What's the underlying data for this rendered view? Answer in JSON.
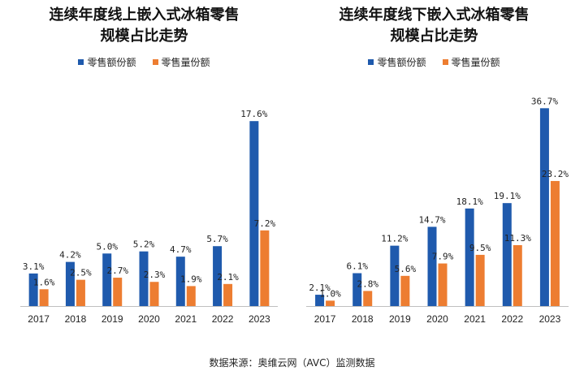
{
  "chart_data": [
    {
      "type": "bar",
      "title_lines": [
        "连续年度线上嵌入式冰箱零售",
        "规模占比走势"
      ],
      "categories": [
        "2017",
        "2018",
        "2019",
        "2020",
        "2021",
        "2022",
        "2023"
      ],
      "series": [
        {
          "name": "零售额份额",
          "values": [
            3.1,
            4.2,
            5.0,
            5.2,
            4.7,
            5.7,
            17.6
          ],
          "labels": [
            "3.1%",
            "4.2%",
            "5.0%",
            "5.2%",
            "4.7%",
            "5.7%",
            "17.6%"
          ],
          "color": "#1f5aad"
        },
        {
          "name": "零售量份额",
          "values": [
            1.6,
            2.5,
            2.7,
            2.3,
            1.9,
            2.1,
            7.2
          ],
          "labels": [
            "1.6%",
            "2.5%",
            "2.7%",
            "2.3%",
            "1.9%",
            "2.1%",
            "7.2%"
          ],
          "color": "#ed7d31"
        }
      ],
      "ylim": [
        0,
        18
      ]
    },
    {
      "type": "bar",
      "title_lines": [
        "连续年度线下嵌入式冰箱零售",
        "规模占比走势"
      ],
      "categories": [
        "2017",
        "2018",
        "2019",
        "2020",
        "2021",
        "2022",
        "2023"
      ],
      "series": [
        {
          "name": "零售额份额",
          "values": [
            2.1,
            6.1,
            11.2,
            14.7,
            18.1,
            19.1,
            36.7
          ],
          "labels": [
            "2.1%",
            "6.1%",
            "11.2%",
            "14.7%",
            "18.1%",
            "19.1%",
            "36.7%"
          ],
          "color": "#1f5aad"
        },
        {
          "name": "零售量份额",
          "values": [
            1.0,
            2.8,
            5.6,
            7.9,
            9.5,
            11.3,
            23.2
          ],
          "labels": [
            "1.0%",
            "2.8%",
            "5.6%",
            "7.9%",
            "9.5%",
            "11.3%",
            "23.2%"
          ],
          "color": "#ed7d31"
        }
      ],
      "ylim": [
        0,
        37.5
      ]
    }
  ],
  "source": "数据来源：奥维云网（AVC）监测数据"
}
